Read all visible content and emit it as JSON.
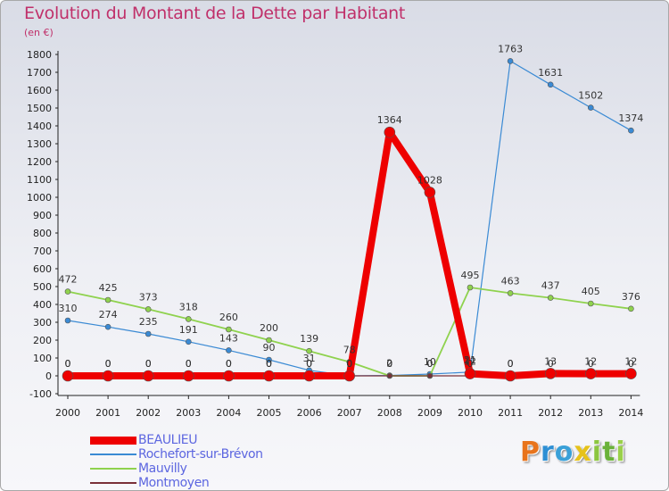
{
  "title": "Evolution du Montant de la Dette par Habitant",
  "unit_label": "(en €)",
  "logo": {
    "letters": [
      "P",
      "r",
      "o",
      "x",
      "i",
      "t",
      "i"
    ],
    "colors": [
      "#e8741c",
      "#2e8fd4",
      "#3aa0d8",
      "#e6c21a",
      "#8cc63f",
      "#6ab23a",
      "#9ad04a"
    ]
  },
  "chart_data": {
    "type": "line",
    "title": "Evolution du Montant de la Dette par Habitant",
    "ylabel": "(en €)",
    "xlabel": "",
    "x": [
      "2000",
      "2001",
      "2002",
      "2003",
      "2004",
      "2005",
      "2006",
      "2007",
      "2008",
      "2009",
      "2010",
      "2011",
      "2012",
      "2013",
      "2014"
    ],
    "ylim": [
      -100,
      1800
    ],
    "yticks": [
      -100,
      0,
      100,
      200,
      300,
      400,
      500,
      600,
      700,
      800,
      900,
      1000,
      1100,
      1200,
      1300,
      1400,
      1500,
      1600,
      1700,
      1800
    ],
    "grid": false,
    "legend_position": "bottom-left",
    "series": [
      {
        "name": "BEAULIEU",
        "color": "#ee0000",
        "values": [
          0,
          0,
          0,
          0,
          0,
          0,
          0,
          0,
          1364,
          1028,
          12,
          0,
          13,
          12,
          12
        ],
        "labels": [
          "0",
          "0",
          "0",
          "0",
          "0",
          "0",
          "0",
          "0",
          "1364",
          "1028",
          "12",
          "0",
          "13",
          "12",
          "12"
        ]
      },
      {
        "name": "Rochefort-sur-Brévon",
        "color": "#3a8ad4",
        "values": [
          310,
          274,
          235,
          191,
          143,
          90,
          31,
          0,
          2,
          10,
          21,
          1763,
          1631,
          1502,
          1374
        ],
        "labels": [
          "310",
          "274",
          "235",
          "191",
          "143",
          "90",
          "31",
          "0",
          "2",
          "10",
          "21",
          "1763",
          "1631",
          "1502",
          "1374"
        ]
      },
      {
        "name": "Mauvilly",
        "color": "#8fd24e",
        "values": [
          472,
          425,
          373,
          318,
          260,
          200,
          139,
          78,
          0,
          0,
          495,
          463,
          437,
          405,
          376
        ],
        "labels": [
          "472",
          "425",
          "373",
          "318",
          "260",
          "200",
          "139",
          "78",
          "0",
          "0",
          "495",
          "463",
          "437",
          "405",
          "376"
        ]
      },
      {
        "name": "Montmoyen",
        "color": "#7a3038",
        "values": [
          0,
          0,
          0,
          0,
          0,
          0,
          0,
          0,
          0,
          0,
          0,
          0,
          0,
          0,
          0
        ],
        "labels": [
          "0",
          "0",
          "0",
          "0",
          "0",
          "0",
          "0",
          "0",
          "0",
          "0",
          "0",
          "0",
          "0",
          "0",
          "0"
        ]
      }
    ]
  }
}
